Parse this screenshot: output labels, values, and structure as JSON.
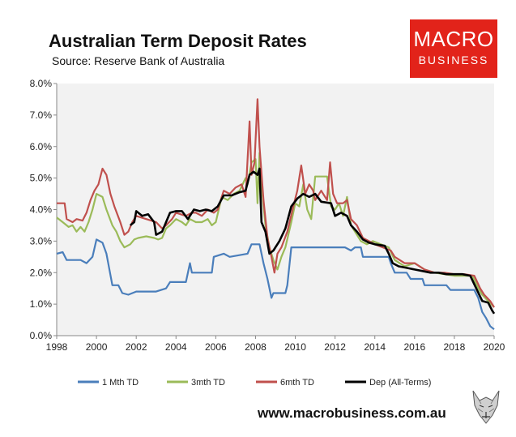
{
  "header": {
    "title": "Australian Term Deposit Rates",
    "source": "Source: Reserve Bank of Australia"
  },
  "logo": {
    "line1": "MACRO",
    "line2": "BUSINESS"
  },
  "footer": {
    "url": "www.macrobusiness.com.au"
  },
  "colors": {
    "plot_bg": "#f2f2f2",
    "logo_red": "#e2231a"
  },
  "chart_data": {
    "type": "line",
    "xlim": [
      1998,
      2020
    ],
    "ylim": [
      0,
      8
    ],
    "x_ticks": [
      "1998",
      "2000",
      "2002",
      "2004",
      "2006",
      "2008",
      "2010",
      "2012",
      "2014",
      "2016",
      "2018",
      "2020"
    ],
    "y_ticks": [
      "0.0%",
      "1.0%",
      "2.0%",
      "3.0%",
      "4.0%",
      "5.0%",
      "6.0%",
      "7.0%",
      "8.0%"
    ],
    "grid": false,
    "legend_position": "bottom",
    "series": [
      {
        "name": "1 Mth TD",
        "color": "#4a7ebb",
        "points": [
          [
            1998.0,
            2.6
          ],
          [
            1998.3,
            2.65
          ],
          [
            1998.5,
            2.4
          ],
          [
            1999.2,
            2.4
          ],
          [
            1999.5,
            2.3
          ],
          [
            1999.8,
            2.5
          ],
          [
            2000.0,
            3.05
          ],
          [
            2000.3,
            2.95
          ],
          [
            2000.5,
            2.6
          ],
          [
            2000.8,
            1.6
          ],
          [
            2001.1,
            1.6
          ],
          [
            2001.3,
            1.35
          ],
          [
            2001.6,
            1.3
          ],
          [
            2002.0,
            1.4
          ],
          [
            2003.0,
            1.4
          ],
          [
            2003.5,
            1.5
          ],
          [
            2003.7,
            1.7
          ],
          [
            2004.5,
            1.7
          ],
          [
            2004.7,
            2.3
          ],
          [
            2004.8,
            2.0
          ],
          [
            2005.8,
            2.0
          ],
          [
            2005.9,
            2.5
          ],
          [
            2006.4,
            2.6
          ],
          [
            2006.7,
            2.5
          ],
          [
            2007.6,
            2.6
          ],
          [
            2007.8,
            2.9
          ],
          [
            2008.2,
            2.9
          ],
          [
            2008.4,
            2.3
          ],
          [
            2008.6,
            1.8
          ],
          [
            2008.8,
            1.2
          ],
          [
            2008.9,
            1.35
          ],
          [
            2009.5,
            1.35
          ],
          [
            2009.6,
            1.6
          ],
          [
            2009.8,
            2.8
          ],
          [
            2012.5,
            2.8
          ],
          [
            2012.8,
            2.7
          ],
          [
            2013.0,
            2.8
          ],
          [
            2013.3,
            2.8
          ],
          [
            2013.4,
            2.5
          ],
          [
            2014.7,
            2.5
          ],
          [
            2014.8,
            2.3
          ],
          [
            2015.0,
            2.0
          ],
          [
            2015.6,
            2.0
          ],
          [
            2015.8,
            1.8
          ],
          [
            2016.4,
            1.8
          ],
          [
            2016.5,
            1.6
          ],
          [
            2017.6,
            1.6
          ],
          [
            2017.8,
            1.45
          ],
          [
            2019.0,
            1.45
          ],
          [
            2019.2,
            1.2
          ],
          [
            2019.4,
            0.75
          ],
          [
            2019.6,
            0.55
          ],
          [
            2019.8,
            0.3
          ],
          [
            2020.0,
            0.2
          ]
        ]
      },
      {
        "name": "3mth TD",
        "color": "#9bbb59",
        "points": [
          [
            1998.0,
            3.75
          ],
          [
            1998.3,
            3.6
          ],
          [
            1998.6,
            3.45
          ],
          [
            1998.8,
            3.5
          ],
          [
            1999.0,
            3.3
          ],
          [
            1999.2,
            3.45
          ],
          [
            1999.4,
            3.3
          ],
          [
            1999.6,
            3.6
          ],
          [
            1999.8,
            4.0
          ],
          [
            2000.0,
            4.5
          ],
          [
            2000.3,
            4.4
          ],
          [
            2000.5,
            4.0
          ],
          [
            2000.8,
            3.5
          ],
          [
            2001.0,
            3.3
          ],
          [
            2001.2,
            3.0
          ],
          [
            2001.4,
            2.8
          ],
          [
            2001.7,
            2.9
          ],
          [
            2001.9,
            3.05
          ],
          [
            2002.1,
            3.1
          ],
          [
            2002.5,
            3.15
          ],
          [
            2002.9,
            3.1
          ],
          [
            2003.1,
            3.05
          ],
          [
            2003.3,
            3.1
          ],
          [
            2003.5,
            3.4
          ],
          [
            2003.7,
            3.5
          ],
          [
            2004.0,
            3.7
          ],
          [
            2004.3,
            3.6
          ],
          [
            2004.5,
            3.5
          ],
          [
            2004.7,
            3.7
          ],
          [
            2005.0,
            3.6
          ],
          [
            2005.3,
            3.6
          ],
          [
            2005.6,
            3.7
          ],
          [
            2005.8,
            3.5
          ],
          [
            2006.0,
            3.6
          ],
          [
            2006.3,
            4.4
          ],
          [
            2006.6,
            4.3
          ],
          [
            2006.9,
            4.5
          ],
          [
            2007.2,
            4.6
          ],
          [
            2007.5,
            5.0
          ],
          [
            2007.6,
            4.8
          ],
          [
            2007.8,
            5.5
          ],
          [
            2008.0,
            5.6
          ],
          [
            2008.1,
            4.2
          ],
          [
            2008.2,
            5.8
          ],
          [
            2008.3,
            4.8
          ],
          [
            2008.5,
            3.5
          ],
          [
            2008.7,
            2.8
          ],
          [
            2008.9,
            2.4
          ],
          [
            2009.1,
            2.1
          ],
          [
            2009.3,
            2.5
          ],
          [
            2009.5,
            2.8
          ],
          [
            2009.8,
            3.6
          ],
          [
            2010.0,
            4.2
          ],
          [
            2010.2,
            4.1
          ],
          [
            2010.4,
            4.8
          ],
          [
            2010.6,
            4.0
          ],
          [
            2010.8,
            3.7
          ],
          [
            2011.0,
            5.05
          ],
          [
            2011.6,
            5.05
          ],
          [
            2011.8,
            4.1
          ],
          [
            2012.0,
            4.0
          ],
          [
            2012.2,
            4.2
          ],
          [
            2012.4,
            3.8
          ],
          [
            2012.6,
            4.4
          ],
          [
            2012.8,
            3.5
          ],
          [
            2013.0,
            3.3
          ],
          [
            2013.3,
            3.0
          ],
          [
            2013.6,
            2.9
          ],
          [
            2013.9,
            3.0
          ],
          [
            2014.3,
            2.9
          ],
          [
            2014.7,
            2.8
          ],
          [
            2015.0,
            2.4
          ],
          [
            2015.5,
            2.2
          ],
          [
            2016.0,
            2.3
          ],
          [
            2016.5,
            2.1
          ],
          [
            2017.0,
            2.0
          ],
          [
            2017.5,
            1.95
          ],
          [
            2018.0,
            1.9
          ],
          [
            2018.5,
            1.9
          ],
          [
            2018.9,
            1.9
          ],
          [
            2019.2,
            1.5
          ],
          [
            2019.4,
            1.3
          ],
          [
            2019.7,
            1.1
          ],
          [
            2020.0,
            0.9
          ]
        ]
      },
      {
        "name": "6mth TD",
        "color": "#c0504d",
        "points": [
          [
            1998.0,
            4.2
          ],
          [
            1998.4,
            4.2
          ],
          [
            1998.5,
            3.7
          ],
          [
            1998.8,
            3.6
          ],
          [
            1999.0,
            3.7
          ],
          [
            1999.3,
            3.65
          ],
          [
            1999.5,
            3.9
          ],
          [
            1999.7,
            4.3
          ],
          [
            1999.9,
            4.6
          ],
          [
            2000.1,
            4.8
          ],
          [
            2000.3,
            5.3
          ],
          [
            2000.5,
            5.1
          ],
          [
            2000.7,
            4.5
          ],
          [
            2000.9,
            4.1
          ],
          [
            2001.2,
            3.6
          ],
          [
            2001.4,
            3.2
          ],
          [
            2001.6,
            3.3
          ],
          [
            2001.8,
            3.6
          ],
          [
            2002.0,
            3.8
          ],
          [
            2002.5,
            3.7
          ],
          [
            2003.0,
            3.6
          ],
          [
            2003.3,
            3.4
          ],
          [
            2003.5,
            3.5
          ],
          [
            2003.8,
            3.7
          ],
          [
            2004.0,
            3.9
          ],
          [
            2004.5,
            3.8
          ],
          [
            2004.8,
            3.9
          ],
          [
            2005.0,
            3.9
          ],
          [
            2005.3,
            3.8
          ],
          [
            2005.6,
            4.0
          ],
          [
            2005.9,
            3.9
          ],
          [
            2006.1,
            4.0
          ],
          [
            2006.4,
            4.6
          ],
          [
            2006.7,
            4.5
          ],
          [
            2007.0,
            4.7
          ],
          [
            2007.3,
            4.8
          ],
          [
            2007.5,
            4.4
          ],
          [
            2007.7,
            6.8
          ],
          [
            2007.8,
            5.1
          ],
          [
            2007.95,
            5.5
          ],
          [
            2008.1,
            7.5
          ],
          [
            2008.2,
            6.0
          ],
          [
            2008.4,
            4.3
          ],
          [
            2008.6,
            3.1
          ],
          [
            2008.8,
            2.5
          ],
          [
            2008.95,
            2.0
          ],
          [
            2009.1,
            2.6
          ],
          [
            2009.3,
            2.8
          ],
          [
            2009.6,
            3.3
          ],
          [
            2009.9,
            4.1
          ],
          [
            2010.1,
            4.6
          ],
          [
            2010.3,
            5.4
          ],
          [
            2010.5,
            4.5
          ],
          [
            2010.7,
            4.8
          ],
          [
            2010.9,
            4.6
          ],
          [
            2011.0,
            4.3
          ],
          [
            2011.3,
            4.6
          ],
          [
            2011.6,
            4.3
          ],
          [
            2011.75,
            5.5
          ],
          [
            2011.9,
            4.5
          ],
          [
            2012.1,
            4.2
          ],
          [
            2012.4,
            4.2
          ],
          [
            2012.6,
            4.3
          ],
          [
            2012.8,
            3.7
          ],
          [
            2013.1,
            3.5
          ],
          [
            2013.4,
            3.1
          ],
          [
            2013.7,
            3.0
          ],
          [
            2014.0,
            2.9
          ],
          [
            2014.4,
            2.8
          ],
          [
            2014.8,
            2.7
          ],
          [
            2015.0,
            2.5
          ],
          [
            2015.5,
            2.3
          ],
          [
            2016.0,
            2.3
          ],
          [
            2016.5,
            2.1
          ],
          [
            2017.0,
            2.0
          ],
          [
            2017.5,
            2.0
          ],
          [
            2018.0,
            1.95
          ],
          [
            2018.5,
            1.95
          ],
          [
            2019.0,
            1.9
          ],
          [
            2019.3,
            1.5
          ],
          [
            2019.5,
            1.3
          ],
          [
            2019.8,
            1.1
          ],
          [
            2020.0,
            0.9
          ]
        ]
      },
      {
        "name": "Dep (All-Terms)",
        "color": "#000000",
        "points": [
          [
            2001.7,
            3.5
          ],
          [
            2001.9,
            3.6
          ],
          [
            2002.0,
            3.95
          ],
          [
            2002.3,
            3.8
          ],
          [
            2002.6,
            3.85
          ],
          [
            2002.9,
            3.6
          ],
          [
            2003.0,
            3.2
          ],
          [
            2003.3,
            3.3
          ],
          [
            2003.5,
            3.6
          ],
          [
            2003.7,
            3.9
          ],
          [
            2004.0,
            3.95
          ],
          [
            2004.3,
            3.95
          ],
          [
            2004.6,
            3.7
          ],
          [
            2004.9,
            4.0
          ],
          [
            2005.2,
            3.95
          ],
          [
            2005.5,
            4.0
          ],
          [
            2005.8,
            3.95
          ],
          [
            2006.1,
            4.1
          ],
          [
            2006.4,
            4.45
          ],
          [
            2006.8,
            4.45
          ],
          [
            2007.2,
            4.55
          ],
          [
            2007.5,
            4.6
          ],
          [
            2007.7,
            5.1
          ],
          [
            2007.9,
            5.2
          ],
          [
            2008.1,
            5.1
          ],
          [
            2008.2,
            5.3
          ],
          [
            2008.3,
            3.6
          ],
          [
            2008.5,
            3.3
          ],
          [
            2008.7,
            2.6
          ],
          [
            2008.9,
            2.7
          ],
          [
            2009.2,
            3.0
          ],
          [
            2009.5,
            3.4
          ],
          [
            2009.8,
            4.1
          ],
          [
            2010.1,
            4.35
          ],
          [
            2010.4,
            4.5
          ],
          [
            2010.7,
            4.4
          ],
          [
            2011.0,
            4.5
          ],
          [
            2011.3,
            4.25
          ],
          [
            2011.8,
            4.2
          ],
          [
            2012.0,
            3.8
          ],
          [
            2012.3,
            3.9
          ],
          [
            2012.6,
            3.8
          ],
          [
            2012.8,
            3.5
          ],
          [
            2013.1,
            3.3
          ],
          [
            2013.4,
            3.05
          ],
          [
            2013.7,
            2.95
          ],
          [
            2014.0,
            2.9
          ],
          [
            2014.5,
            2.85
          ],
          [
            2014.7,
            2.6
          ],
          [
            2014.9,
            2.3
          ],
          [
            2015.2,
            2.2
          ],
          [
            2015.6,
            2.15
          ],
          [
            2016.0,
            2.1
          ],
          [
            2016.4,
            2.05
          ],
          [
            2016.8,
            2.0
          ],
          [
            2017.2,
            2.0
          ],
          [
            2017.6,
            1.95
          ],
          [
            2018.0,
            1.95
          ],
          [
            2018.4,
            1.95
          ],
          [
            2018.8,
            1.9
          ],
          [
            2019.1,
            1.5
          ],
          [
            2019.4,
            1.1
          ],
          [
            2019.7,
            1.05
          ],
          [
            2019.9,
            0.8
          ],
          [
            2020.0,
            0.7
          ]
        ]
      }
    ]
  }
}
